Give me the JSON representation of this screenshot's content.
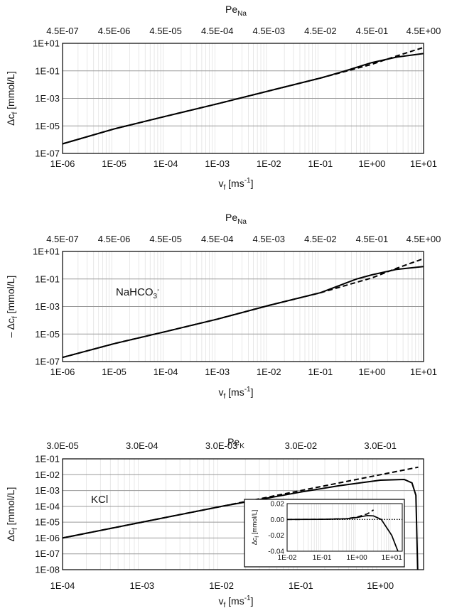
{
  "chart_data": [
    {
      "type": "line",
      "xscale": "log",
      "yscale": "log",
      "xlabel": "v",
      "xlabel_sub": "f",
      "xlabel_unit_pre": " [ms",
      "xlabel_unit_sup": "-1",
      "xlabel_unit_post": "]",
      "ylabel": "Δc",
      "ylabel_sub": "f",
      "ylabel_unit": " [mmol/L]",
      "top_axis_label": "Pe",
      "top_axis_sub": "Na",
      "xlim": [
        1e-06,
        10
      ],
      "ylim": [
        1e-07,
        10
      ],
      "x_ticks": [
        1e-06,
        1e-05,
        0.0001,
        0.001,
        0.01,
        0.1,
        1,
        10
      ],
      "x_tick_labels": [
        "1E-06",
        "1E-05",
        "1E-04",
        "1E-03",
        "1E-02",
        "1E-01",
        "1E+00",
        "1E+01"
      ],
      "y_ticks": [
        1e-07,
        1e-05,
        0.001,
        0.1,
        10
      ],
      "y_tick_labels": [
        "1E-07",
        "1E-05",
        "1E-03",
        "1E-01",
        "1E+01"
      ],
      "top_tick_labels": [
        "4.5E-07",
        "4.5E-06",
        "4.5E-05",
        "4.5E-04",
        "4.5E-03",
        "4.5E-02",
        "4.5E-01",
        "4.5E+00"
      ],
      "series": [
        {
          "style": "dashed",
          "x": [
            1e-06,
            1e-05,
            0.0001,
            0.001,
            0.01,
            0.1,
            1,
            3,
            10
          ],
          "y": [
            5e-07,
            6e-06,
            5e-05,
            0.0004,
            0.0035,
            0.03,
            0.3,
            1.2,
            5
          ]
        },
        {
          "style": "solid",
          "x": [
            1e-06,
            1e-05,
            0.0001,
            0.001,
            0.01,
            0.1,
            0.3,
            1,
            3,
            10
          ],
          "y": [
            5e-07,
            6e-06,
            5e-05,
            0.0004,
            0.0035,
            0.03,
            0.1,
            0.4,
            1.0,
            1.8
          ]
        }
      ]
    },
    {
      "type": "line",
      "xscale": "log",
      "yscale": "log",
      "xlabel": "v",
      "xlabel_sub": "f",
      "xlabel_unit_pre": " [ms",
      "xlabel_unit_sup": "-1",
      "xlabel_unit_post": "]",
      "ylabel": "– Δc",
      "ylabel_sub": "f",
      "ylabel_unit": " [mmol/L]",
      "top_axis_label": "Pe",
      "top_axis_sub": "Na",
      "annotation": "NaHCO",
      "annotation_sub": "3",
      "annotation_sup": "-",
      "xlim": [
        1e-06,
        10
      ],
      "ylim": [
        1e-07,
        10
      ],
      "x_ticks": [
        1e-06,
        1e-05,
        0.0001,
        0.001,
        0.01,
        0.1,
        1,
        10
      ],
      "x_tick_labels": [
        "1E-06",
        "1E-05",
        "1E-04",
        "1E-03",
        "1E-02",
        "1E-01",
        "1E+00",
        "1E+01"
      ],
      "y_ticks": [
        1e-07,
        1e-05,
        0.001,
        0.1,
        10
      ],
      "y_tick_labels": [
        "1E-07",
        "1E-05",
        "1E-03",
        "1E-01",
        "1E+01"
      ],
      "top_tick_labels": [
        "4.5E-07",
        "4.5E-06",
        "4.5E-05",
        "4.5E-04",
        "4.5E-03",
        "4.5E-02",
        "4.5E-01",
        "4.5E+00"
      ],
      "series": [
        {
          "style": "dashed",
          "x": [
            1e-06,
            1e-05,
            0.0001,
            0.001,
            0.01,
            0.1,
            1,
            3,
            10
          ],
          "y": [
            2e-07,
            2e-06,
            1.5e-05,
            0.00012,
            0.0012,
            0.01,
            0.12,
            0.6,
            3
          ]
        },
        {
          "style": "solid",
          "x": [
            1e-06,
            1e-05,
            0.0001,
            0.001,
            0.01,
            0.1,
            0.5,
            1,
            3,
            10
          ],
          "y": [
            2e-07,
            2e-06,
            1.5e-05,
            0.00012,
            0.0012,
            0.01,
            0.1,
            0.2,
            0.5,
            0.8
          ]
        }
      ]
    },
    {
      "type": "line",
      "xscale": "log",
      "yscale": "log",
      "xlabel": "v",
      "xlabel_sub": "f",
      "xlabel_unit_pre": " [ms",
      "xlabel_unit_sup": "-1",
      "xlabel_unit_post": "]",
      "ylabel": "Δc",
      "ylabel_sub": "f",
      "ylabel_unit": " [mmol/L]",
      "top_axis_label": "Pe",
      "top_axis_sub": "K",
      "annotation": "KCl",
      "xlim": [
        0.0001,
        3.5
      ],
      "ylim": [
        1e-08,
        0.1
      ],
      "x_ticks": [
        0.0001,
        0.001,
        0.01,
        0.1,
        1
      ],
      "x_tick_labels": [
        "1E-04",
        "1E-03",
        "1E-02",
        "1E-01",
        "1E+00"
      ],
      "y_ticks": [
        1e-08,
        1e-07,
        1e-06,
        1e-05,
        0.0001,
        0.001,
        0.01,
        0.1
      ],
      "y_tick_labels": [
        "1E-08",
        "1E-07",
        "1E-06",
        "1E-05",
        "1E-04",
        "1E-03",
        "1E-02",
        "1E-01"
      ],
      "top_tick_labels": [
        "3.0E-05",
        "3.0E-04",
        "3.0E-03",
        "3.0E-02",
        "3.0E-01"
      ],
      "series": [
        {
          "style": "dashed",
          "x": [
            0.0001,
            0.001,
            0.01,
            0.1,
            1,
            3
          ],
          "y": [
            1e-06,
            1e-05,
            0.0001,
            0.001,
            0.01,
            0.03
          ]
        },
        {
          "style": "solid",
          "x": [
            0.0001,
            0.001,
            0.01,
            0.1,
            0.3,
            1,
            2,
            2.5,
            2.8,
            2.95
          ],
          "y": [
            1e-06,
            1e-05,
            0.0001,
            0.0008,
            0.002,
            0.0045,
            0.005,
            0.003,
            0.0005,
            1e-08
          ]
        }
      ],
      "inset": {
        "type": "line",
        "xscale": "log",
        "yscale": "linear",
        "ylabel": "Δc",
        "ylabel_sub": "f",
        "ylabel_unit": " [mmol/L]",
        "xlim": [
          0.01,
          20
        ],
        "ylim": [
          -0.04,
          0.02
        ],
        "x_ticks": [
          0.01,
          0.1,
          1,
          10
        ],
        "x_tick_labels": [
          "1E-02",
          "1E-01",
          "1E+00",
          "1E+01"
        ],
        "y_ticks": [
          -0.04,
          -0.02,
          0,
          0.02
        ],
        "y_tick_labels": [
          "-0.04",
          "-0.02",
          "0.00",
          "0.02"
        ],
        "series": [
          {
            "style": "dashed",
            "x": [
              0.01,
              0.1,
              0.5,
              1,
              2,
              3
            ],
            "y": [
              0.0,
              0.0002,
              0.001,
              0.003,
              0.007,
              0.012
            ]
          },
          {
            "style": "solid",
            "x": [
              0.01,
              0.1,
              0.5,
              1,
              2,
              3,
              5,
              10,
              15
            ],
            "y": [
              0.0,
              0.0002,
              0.0008,
              0.0025,
              0.005,
              0.0045,
              0.0,
              -0.02,
              -0.04
            ]
          },
          {
            "style": "dotted",
            "x": [
              0.01,
              20
            ],
            "y": [
              0,
              0
            ]
          }
        ]
      }
    }
  ]
}
